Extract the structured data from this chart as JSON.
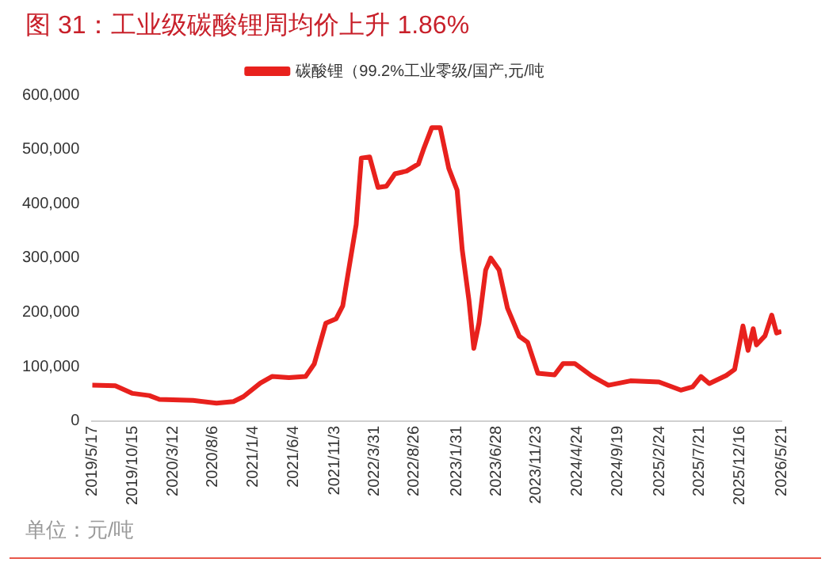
{
  "chart_data": {
    "type": "line",
    "title": "图 31：工业级碳酸锂周均价上升 1.86%",
    "annotations": [
      "单位：元/吨"
    ],
    "legend": "top",
    "grid": false,
    "marker": "none",
    "line_style": "solid",
    "xlim": [
      "2019-05-17",
      "2026-05-21"
    ],
    "xticks": [
      {
        "value": "2019-05-17",
        "label": "2019/5/17"
      },
      {
        "value": "2019-10-15",
        "label": "2019/10/15"
      },
      {
        "value": "2020-03-12",
        "label": "2020/3/12"
      },
      {
        "value": "2020-08-06",
        "label": "2020/8/6"
      },
      {
        "value": "2021-01-04",
        "label": "2021/1/4"
      },
      {
        "value": "2021-06-04",
        "label": "2021/6/4"
      },
      {
        "value": "2021-11-03",
        "label": "2021/11/3"
      },
      {
        "value": "2022-03-31",
        "label": "2022/3/31"
      },
      {
        "value": "2022-08-26",
        "label": "2022/8/26"
      },
      {
        "value": "2023-01-31",
        "label": "2023/1/31"
      },
      {
        "value": "2023-06-28",
        "label": "2023/6/28"
      },
      {
        "value": "2023-11-23",
        "label": "2023/11/23"
      },
      {
        "value": "2024-04-24",
        "label": "2024/4/24"
      },
      {
        "value": "2024-09-19",
        "label": "2024/9/19"
      },
      {
        "value": "2025-02-24",
        "label": "2025/2/24"
      },
      {
        "value": "2025-07-21",
        "label": "2025/7/21"
      },
      {
        "value": "2025-12-16",
        "label": "2025/12/16"
      },
      {
        "value": "2026-05-21",
        "label": "2026/5/21"
      }
    ],
    "ylim": [
      0,
      600000
    ],
    "yticks": [
      {
        "value": 0,
        "label": "0"
      },
      {
        "value": 100000,
        "label": "100,000"
      },
      {
        "value": 200000,
        "label": "200,000"
      },
      {
        "value": 300000,
        "label": "300,000"
      },
      {
        "value": 400000,
        "label": "400,000"
      },
      {
        "value": 500000,
        "label": "500,000"
      },
      {
        "value": 600000,
        "label": "600,000"
      }
    ],
    "x": [
      "2019-05-17",
      "2019-08-11",
      "2019-10-14",
      "2019-12-15",
      "2020-01-22",
      "2020-05-26",
      "2020-08-21",
      "2020-10-23",
      "2020-11-29",
      "2021-01-31",
      "2021-03-15",
      "2021-05-17",
      "2021-07-18",
      "2021-08-19",
      "2021-10-01",
      "2021-11-08",
      "2021-12-03",
      "2022-01-03",
      "2022-01-22",
      "2022-02-10",
      "2022-03-13",
      "2022-04-13",
      "2022-05-14",
      "2022-06-15",
      "2022-07-28",
      "2022-09-10",
      "2022-09-29",
      "2022-10-30",
      "2022-11-30",
      "2023-01-01",
      "2023-02-01",
      "2023-02-20",
      "2023-03-17",
      "2023-04-04",
      "2023-04-23",
      "2023-05-18",
      "2023-06-06",
      "2023-07-07",
      "2023-08-07",
      "2023-09-20",
      "2023-10-21",
      "2023-11-28",
      "2024-01-29",
      "2024-03-01",
      "2024-04-13",
      "2024-06-15",
      "2024-08-16",
      "2024-11-06",
      "2025-02-20",
      "2025-05-12",
      "2025-06-25",
      "2025-07-26",
      "2025-08-26",
      "2025-10-28",
      "2025-11-28",
      "2025-12-29",
      "2026-01-17",
      "2026-02-05",
      "2026-02-17",
      "2026-03-21",
      "2026-04-15",
      "2026-05-03",
      "2026-05-21"
    ],
    "series": [
      {
        "name": "碳酸锂（99.2%工业零级/国产,元/吨",
        "color": "#e8211d",
        "values": [
          66000,
          65000,
          51000,
          47000,
          40000,
          38000,
          33000,
          36000,
          45000,
          70000,
          82000,
          80000,
          82000,
          105000,
          180000,
          188000,
          212000,
          305000,
          362000,
          484000,
          486000,
          430000,
          432000,
          455000,
          460000,
          473000,
          500000,
          540000,
          540000,
          465000,
          425000,
          315000,
          222000,
          134000,
          180000,
          278000,
          300000,
          278000,
          208000,
          156000,
          145000,
          88000,
          85000,
          106000,
          106000,
          83000,
          66000,
          74000,
          72000,
          57000,
          63000,
          82000,
          69000,
          84000,
          95000,
          175000,
          130000,
          170000,
          140000,
          157000,
          195000,
          162000,
          165000
        ]
      }
    ]
  }
}
